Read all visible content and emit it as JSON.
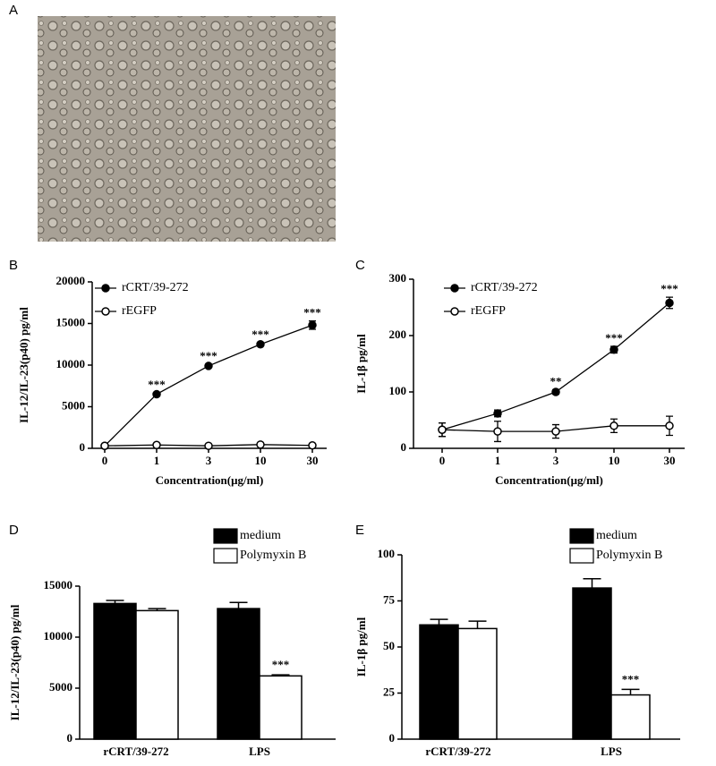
{
  "chart_data": [
    {
      "type": "image",
      "label": "A"
    },
    {
      "type": "line",
      "label": "B",
      "ylabel": "IL-12/IL-23(p40) pg/ml",
      "xlabel": "Concentration(μg/ml)",
      "categories": [
        "0",
        "1",
        "3",
        "10",
        "30"
      ],
      "series": [
        {
          "name": "rCRT/39-272",
          "color": "#000000",
          "filled": true,
          "values": [
            300,
            6500,
            9900,
            12500,
            14800
          ],
          "errors": [
            100,
            150,
            200,
            200,
            500
          ],
          "significance": [
            null,
            "***",
            "***",
            "***",
            "***"
          ]
        },
        {
          "name": "rEGFP",
          "color": "#000000",
          "filled": false,
          "values": [
            300,
            400,
            300,
            450,
            350
          ],
          "errors": [
            100,
            100,
            100,
            100,
            100
          ]
        }
      ],
      "ylim": [
        0,
        20000
      ],
      "yticks": [
        0,
        5000,
        10000,
        15000,
        20000
      ]
    },
    {
      "type": "line",
      "label": "C",
      "ylabel": "IL-1β pg/ml",
      "xlabel": "Concentration(μg/ml)",
      "categories": [
        "0",
        "1",
        "3",
        "10",
        "30"
      ],
      "series": [
        {
          "name": "rCRT/39-272",
          "color": "#000000",
          "filled": true,
          "values": [
            33,
            62,
            100,
            175,
            258
          ],
          "errors": [
            12,
            6,
            4,
            6,
            10
          ],
          "significance": [
            null,
            null,
            "**",
            "***",
            "***"
          ]
        },
        {
          "name": "rEGFP",
          "color": "#000000",
          "filled": false,
          "values": [
            33,
            30,
            30,
            40,
            40
          ],
          "errors": [
            12,
            18,
            12,
            12,
            17
          ]
        }
      ],
      "ylim": [
        0,
        300
      ],
      "yticks": [
        0,
        100,
        200,
        300
      ]
    },
    {
      "type": "bar",
      "label": "D",
      "ylabel": "IL-12/IL-23(p40) pg/ml",
      "categories": [
        "rCRT/39-272",
        "LPS"
      ],
      "series": [
        {
          "name": "medium",
          "color": "#000000",
          "values": [
            13300,
            12800
          ],
          "errors": [
            300,
            600
          ]
        },
        {
          "name": "Polymyxin B",
          "color": "#ffffff",
          "values": [
            12600,
            6200
          ],
          "errors": [
            200,
            100
          ],
          "significance": [
            null,
            "***"
          ]
        }
      ],
      "ylim": [
        0,
        15000
      ],
      "yticks": [
        0,
        5000,
        10000,
        15000
      ]
    },
    {
      "type": "bar",
      "label": "E",
      "ylabel": "IL-1β pg/ml",
      "categories": [
        "rCRT/39-272",
        "LPS"
      ],
      "series": [
        {
          "name": "medium",
          "color": "#000000",
          "values": [
            62,
            82
          ],
          "errors": [
            3,
            5
          ]
        },
        {
          "name": "Polymyxin B",
          "color": "#ffffff",
          "values": [
            60,
            24
          ],
          "errors": [
            4,
            3
          ],
          "significance": [
            null,
            "***"
          ]
        }
      ],
      "ylim": [
        0,
        100
      ],
      "yticks": [
        0,
        25,
        50,
        75,
        100
      ]
    }
  ]
}
